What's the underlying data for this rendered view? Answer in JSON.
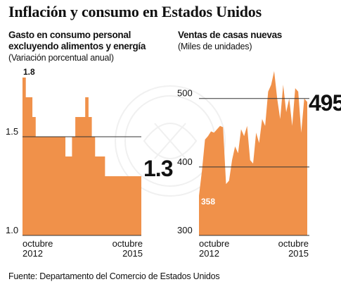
{
  "title": "Inflación y consumo en Estados Unidos",
  "source": "Fuente: Departamento del Comercio de Estados Unidos",
  "chart_data": [
    {
      "type": "area",
      "subtitle_lines": [
        "Gasto en consumo personal",
        "excluyendo alimentos y energía"
      ],
      "unit_note": "(Variación porcentual anual)",
      "ylim": [
        1.0,
        1.85
      ],
      "yticks": [
        {
          "value": 1.0,
          "label": "1.0"
        },
        {
          "value": 1.5,
          "label": "1.5"
        }
      ],
      "x_labels": [
        {
          "line1": "octubre",
          "line2": "2012"
        },
        {
          "line1": "octubre",
          "line2": "2015"
        }
      ],
      "start_label": "1.8",
      "end_label": "1.3",
      "x": [
        0,
        1,
        2,
        3,
        4,
        5,
        6,
        7,
        8,
        9,
        10,
        11,
        12,
        13,
        14,
        15,
        16,
        17,
        18,
        19,
        20,
        21,
        22,
        23,
        24,
        25,
        26,
        27,
        28,
        29,
        30,
        31,
        32,
        33,
        34,
        35,
        36
      ],
      "values": [
        1.8,
        1.7,
        1.7,
        1.6,
        1.5,
        1.5,
        1.5,
        1.5,
        1.5,
        1.5,
        1.5,
        1.5,
        1.5,
        1.4,
        1.4,
        1.5,
        1.6,
        1.6,
        1.6,
        1.7,
        1.6,
        1.5,
        1.4,
        1.4,
        1.4,
        1.3,
        1.3,
        1.3,
        1.3,
        1.3,
        1.3,
        1.3,
        1.3,
        1.3,
        1.3,
        1.3,
        1.3
      ]
    },
    {
      "type": "area",
      "subtitle_lines": [
        "Ventas de casas nuevas"
      ],
      "unit_note": "(Miles de unidades)",
      "ylim": [
        300,
        545
      ],
      "yticks": [
        {
          "value": 300,
          "label": "300"
        },
        {
          "value": 400,
          "label": "400"
        },
        {
          "value": 500,
          "label": "500"
        }
      ],
      "x_labels": [
        {
          "line1": "octubre",
          "line2": "2012"
        },
        {
          "line1": "octubre",
          "line2": "2015"
        }
      ],
      "start_label": "358",
      "end_label": "495",
      "x": [
        0,
        1,
        2,
        3,
        4,
        5,
        6,
        7,
        8,
        9,
        10,
        11,
        12,
        13,
        14,
        15,
        16,
        17,
        18,
        19,
        20,
        21,
        22,
        23,
        24,
        25,
        26,
        27,
        28,
        29,
        30,
        31,
        32,
        33,
        34,
        35,
        36
      ],
      "values": [
        358,
        395,
        440,
        445,
        452,
        450,
        455,
        460,
        458,
        375,
        380,
        410,
        430,
        420,
        455,
        445,
        460,
        410,
        405,
        450,
        435,
        470,
        460,
        510,
        520,
        540,
        500,
        470,
        520,
        480,
        500,
        460,
        515,
        510,
        450,
        500,
        495
      ]
    }
  ]
}
